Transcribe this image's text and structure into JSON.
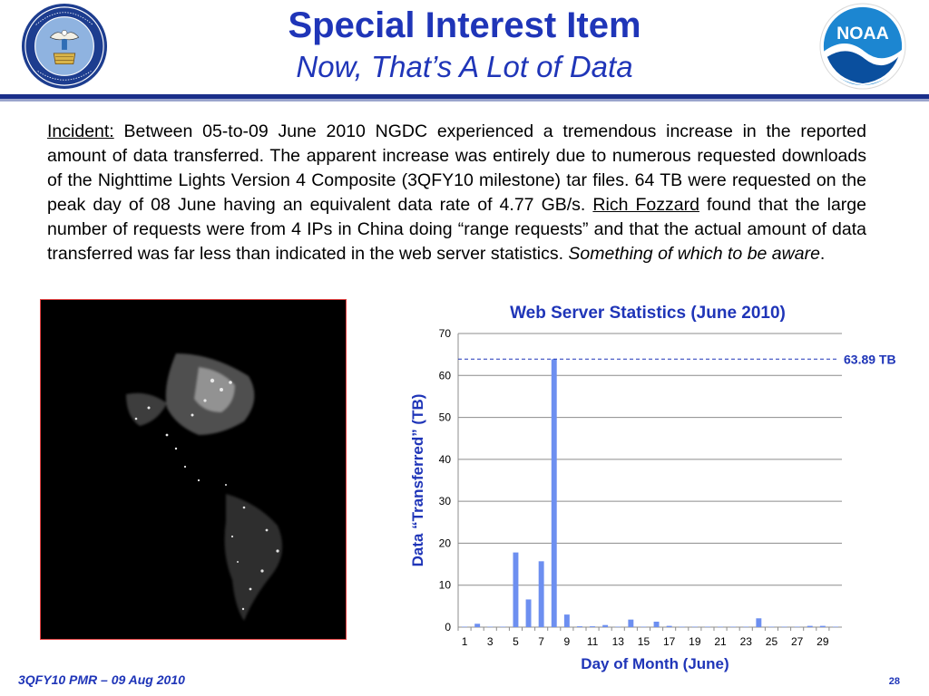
{
  "header": {
    "title": "Special Interest Item",
    "subtitle": "Now, That’s A Lot of Data",
    "left_logo": {
      "ring_text": "DEPARTMENT OF COMMERCE · UNITED STATES OF AMERICA"
    },
    "right_logo": {
      "text": "NOAA"
    }
  },
  "body": {
    "incident_label": "Incident:",
    "text_1": " Between 05-to-09 June 2010 NGDC experienced a tremendous increase in the reported amount of data transferred. The apparent increase was entirely due to numerous requested downloads of the Nighttime Lights Version 4 Composite (3QFY10 milestone) tar files. 64 TB were requested on the peak day of 08 June having an equivalent data rate of 4.77 GB/s. ",
    "person": "Rich Fozzard",
    "text_2": " found that the large number of requests were from 4 IPs in China doing “range requests” and that the actual amount of data transferred was far less than indicated in the web server statistics. ",
    "italic_note": "Something of which to be aware",
    "end": "."
  },
  "chart_data": {
    "type": "bar",
    "title": "Web Server Statistics (June 2010)",
    "xlabel": "Day of Month (June)",
    "ylabel": "Data “Transferred” (TB)",
    "ylim": [
      0,
      70
    ],
    "yticks": [
      0,
      10,
      20,
      30,
      40,
      50,
      60,
      70
    ],
    "categories": [
      1,
      2,
      3,
      4,
      5,
      6,
      7,
      8,
      9,
      10,
      11,
      12,
      13,
      14,
      15,
      16,
      17,
      18,
      19,
      20,
      21,
      22,
      23,
      24,
      25,
      26,
      27,
      28,
      29,
      30
    ],
    "x_tick_labels": [
      "1",
      "3",
      "5",
      "7",
      "9",
      "11",
      "13",
      "15",
      "17",
      "19",
      "21",
      "23",
      "25",
      "27",
      "29"
    ],
    "values": [
      0.1,
      0.8,
      0.1,
      0.1,
      17.8,
      6.6,
      15.7,
      63.89,
      3.0,
      0.2,
      0.2,
      0.5,
      0.1,
      1.8,
      0.1,
      1.3,
      0.3,
      0.1,
      0.1,
      0.1,
      0.1,
      0.1,
      0.1,
      2.1,
      0.1,
      0.1,
      0.1,
      0.3,
      0.3,
      0.1
    ],
    "bar_color": "#6d8ff0",
    "reference_line": {
      "value": 63.89,
      "label": "63.89 TB"
    },
    "grid": true
  },
  "footer": {
    "left": "3QFY10 PMR – 09 Aug 2010",
    "page_number": "28"
  }
}
